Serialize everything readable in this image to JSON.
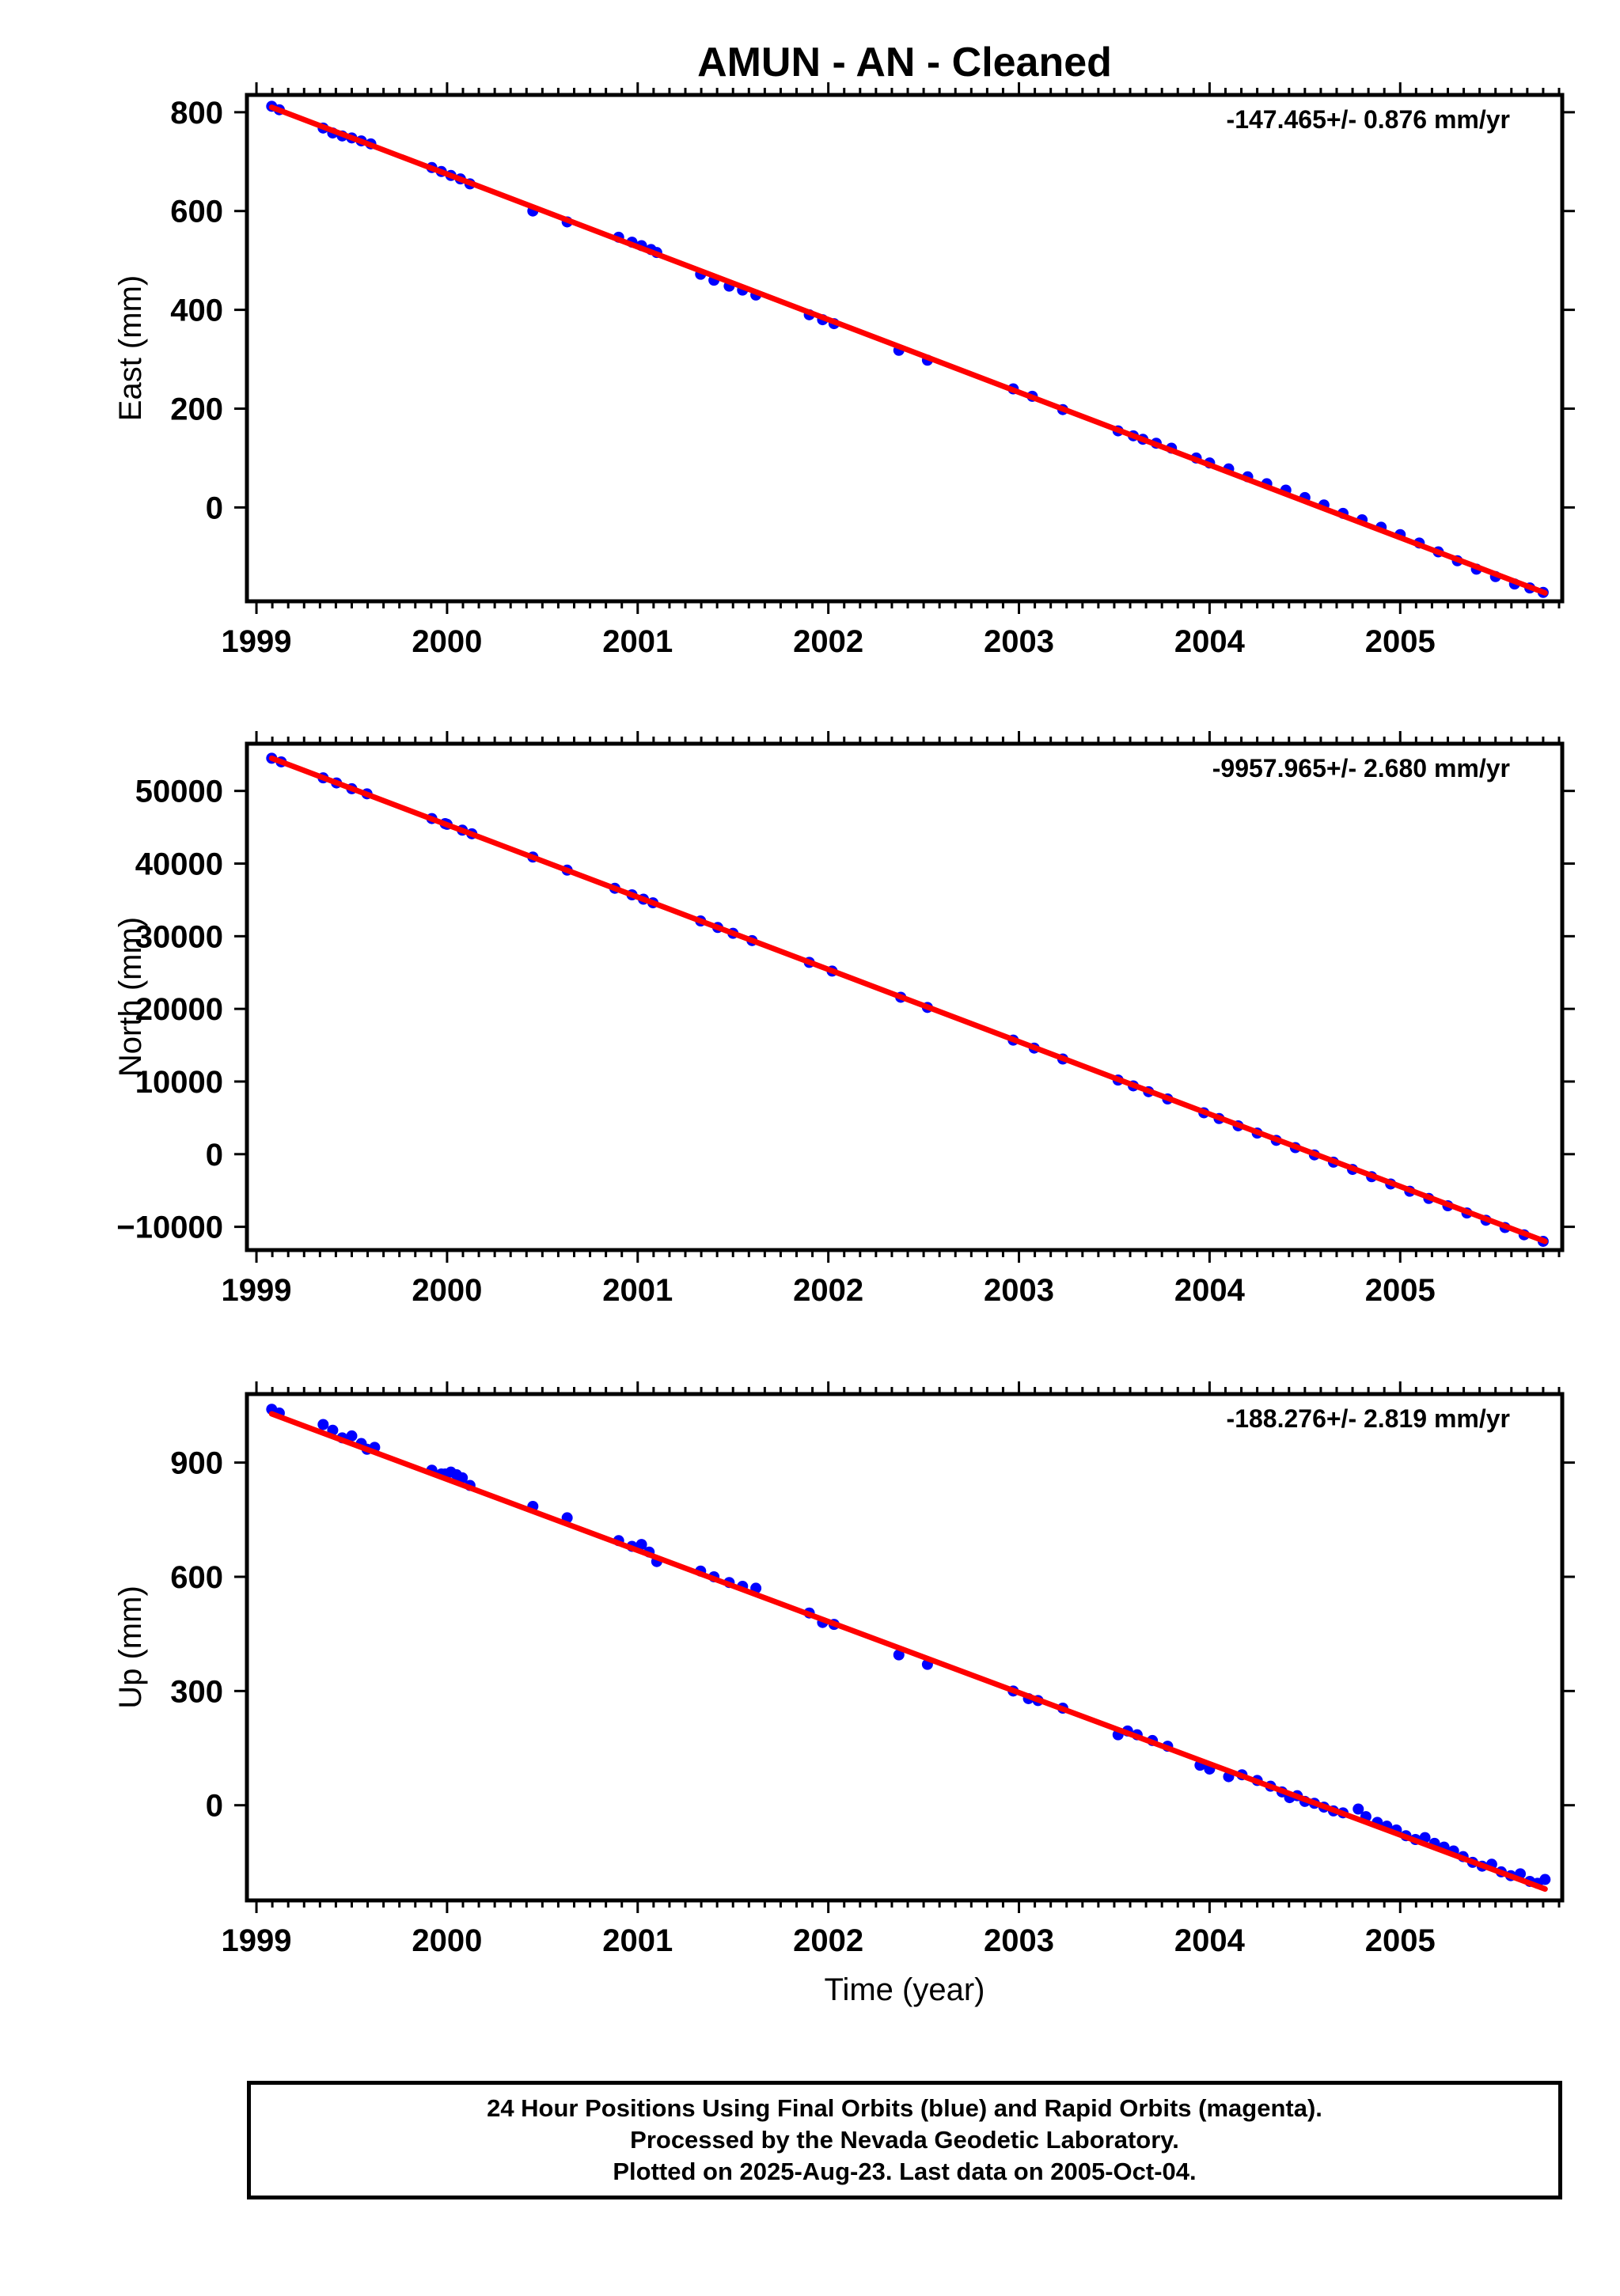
{
  "title": "AMUN  - AN - Cleaned",
  "footer": {
    "line1": "24 Hour Positions Using Final Orbits (blue) and Rapid Orbits (magenta).",
    "line2": "Processed by the Nevada Geodetic Laboratory.",
    "line3": "Plotted on 2025-Aug-23. Last data on 2005-Oct-04."
  },
  "colors": {
    "data": "#0000ff",
    "fit": "#ff0000",
    "axes": "#000000"
  },
  "chart_data": [
    {
      "type": "scatter",
      "component": "east",
      "ylabel": "East (mm)",
      "xlabel": "",
      "rate_label": "-147.465+/- 0.876 mm/yr",
      "xlim": [
        1998.95,
        2005.85
      ],
      "ylim": [
        -190,
        835
      ],
      "xticks": [
        1999,
        2000,
        2001,
        2002,
        2003,
        2004,
        2005
      ],
      "yticks": [
        0,
        200,
        400,
        600,
        800
      ],
      "grid": false,
      "fit": {
        "x": [
          1999.08,
          2005.76
        ],
        "y": [
          810,
          -173
        ]
      },
      "points": [
        [
          1999.08,
          812
        ],
        [
          1999.12,
          805
        ],
        [
          1999.35,
          768
        ],
        [
          1999.4,
          758
        ],
        [
          1999.45,
          752
        ],
        [
          1999.5,
          748
        ],
        [
          1999.55,
          742
        ],
        [
          1999.6,
          736
        ],
        [
          1999.92,
          688
        ],
        [
          1999.97,
          680
        ],
        [
          2000.02,
          672
        ],
        [
          2000.07,
          665
        ],
        [
          2000.12,
          655
        ],
        [
          2000.45,
          600
        ],
        [
          2000.63,
          578
        ],
        [
          2000.9,
          547
        ],
        [
          2000.97,
          537
        ],
        [
          2001.02,
          530
        ],
        [
          2001.07,
          522
        ],
        [
          2001.1,
          516
        ],
        [
          2001.33,
          472
        ],
        [
          2001.4,
          460
        ],
        [
          2001.48,
          448
        ],
        [
          2001.55,
          440
        ],
        [
          2001.62,
          430
        ],
        [
          2001.9,
          390
        ],
        [
          2001.97,
          380
        ],
        [
          2002.03,
          372
        ],
        [
          2002.37,
          318
        ],
        [
          2002.52,
          298
        ],
        [
          2002.97,
          240
        ],
        [
          2003.07,
          225
        ],
        [
          2003.23,
          198
        ],
        [
          2003.52,
          155
        ],
        [
          2003.6,
          145
        ],
        [
          2003.65,
          138
        ],
        [
          2003.72,
          130
        ],
        [
          2003.8,
          120
        ],
        [
          2003.93,
          100
        ],
        [
          2004.0,
          90
        ],
        [
          2004.1,
          78
        ],
        [
          2004.2,
          62
        ],
        [
          2004.3,
          48
        ],
        [
          2004.4,
          35
        ],
        [
          2004.5,
          20
        ],
        [
          2004.6,
          5
        ],
        [
          2004.7,
          -12
        ],
        [
          2004.8,
          -25
        ],
        [
          2004.9,
          -40
        ],
        [
          2005.0,
          -55
        ],
        [
          2005.1,
          -72
        ],
        [
          2005.2,
          -90
        ],
        [
          2005.3,
          -108
        ],
        [
          2005.4,
          -125
        ],
        [
          2005.5,
          -140
        ],
        [
          2005.6,
          -155
        ],
        [
          2005.68,
          -163
        ],
        [
          2005.75,
          -172
        ]
      ]
    },
    {
      "type": "scatter",
      "component": "north",
      "ylabel": "North (mm)",
      "xlabel": "",
      "rate_label": "-9957.965+/- 2.680 mm/yr",
      "xlim": [
        1998.95,
        2005.85
      ],
      "ylim": [
        -13200,
        56500
      ],
      "xticks": [
        1999,
        2000,
        2001,
        2002,
        2003,
        2004,
        2005
      ],
      "yticks": [
        -10000,
        0,
        10000,
        20000,
        30000,
        40000,
        50000
      ],
      "ytick_labels": [
        "−10000",
        "0",
        "10000",
        "20000",
        "30000",
        "40000",
        "50000"
      ],
      "grid": false,
      "fit": {
        "x": [
          1999.08,
          2005.76
        ],
        "y": [
          54500,
          -12000
        ]
      },
      "points": [
        [
          1999.08,
          54500
        ],
        [
          1999.13,
          54000
        ],
        [
          1999.35,
          51800
        ],
        [
          1999.42,
          51100
        ],
        [
          1999.5,
          50300
        ],
        [
          1999.58,
          49600
        ],
        [
          1999.92,
          46200
        ],
        [
          2000.0,
          45400
        ],
        [
          2000.08,
          44600
        ],
        [
          2000.13,
          44100
        ],
        [
          2000.45,
          40900
        ],
        [
          2000.63,
          39100
        ],
        [
          2000.88,
          36600
        ],
        [
          2000.97,
          35700
        ],
        [
          2001.03,
          35100
        ],
        [
          2001.08,
          34600
        ],
        [
          2001.33,
          32100
        ],
        [
          2001.42,
          31200
        ],
        [
          2001.5,
          30400
        ],
        [
          2001.6,
          29400
        ],
        [
          2001.9,
          26400
        ],
        [
          1999.99,
          45500
        ],
        [
          2002.02,
          25200
        ],
        [
          2002.38,
          21600
        ],
        [
          2002.52,
          20200
        ],
        [
          2002.97,
          15700
        ],
        [
          2003.08,
          14600
        ],
        [
          2003.23,
          13100
        ],
        [
          2003.52,
          10200
        ],
        [
          2003.6,
          9400
        ],
        [
          2003.68,
          8600
        ],
        [
          2003.78,
          7600
        ],
        [
          2003.97,
          5700
        ],
        [
          2004.05,
          4900
        ],
        [
          2004.15,
          3900
        ],
        [
          2004.25,
          2900
        ],
        [
          2004.35,
          1900
        ],
        [
          2004.45,
          900
        ],
        [
          2004.55,
          -100
        ],
        [
          2004.65,
          -1100
        ],
        [
          2004.75,
          -2100
        ],
        [
          2004.85,
          -3100
        ],
        [
          2004.95,
          -4100
        ],
        [
          2005.05,
          -5100
        ],
        [
          2005.15,
          -6100
        ],
        [
          2005.25,
          -7100
        ],
        [
          2005.35,
          -8100
        ],
        [
          2005.45,
          -9100
        ],
        [
          2005.55,
          -10100
        ],
        [
          2005.65,
          -11100
        ],
        [
          2005.75,
          -12000
        ]
      ]
    },
    {
      "type": "scatter",
      "component": "up",
      "ylabel": "Up (mm)",
      "xlabel": "Time (year)",
      "rate_label": "-188.276+/- 2.819 mm/yr",
      "xlim": [
        1998.95,
        2005.85
      ],
      "ylim": [
        -250,
        1080
      ],
      "xticks": [
        1999,
        2000,
        2001,
        2002,
        2003,
        2004,
        2005
      ],
      "yticks": [
        0,
        300,
        600,
        900
      ],
      "grid": false,
      "fit": {
        "x": [
          1999.08,
          2005.76
        ],
        "y": [
          1028,
          -220
        ]
      },
      "points": [
        [
          1999.08,
          1040
        ],
        [
          1999.12,
          1030
        ],
        [
          1999.35,
          1000
        ],
        [
          1999.4,
          985
        ],
        [
          1999.45,
          965
        ],
        [
          1999.5,
          970
        ],
        [
          1999.55,
          950
        ],
        [
          1999.58,
          935
        ],
        [
          1999.62,
          940
        ],
        [
          1999.92,
          880
        ],
        [
          1999.97,
          870
        ],
        [
          2000.02,
          875
        ],
        [
          2000.05,
          868
        ],
        [
          2000.08,
          860
        ],
        [
          2000.12,
          840
        ],
        [
          2000.45,
          785
        ],
        [
          2000.63,
          755
        ],
        [
          2000.9,
          695
        ],
        [
          2000.97,
          680
        ],
        [
          2001.02,
          685
        ],
        [
          2001.06,
          665
        ],
        [
          2001.1,
          640
        ],
        [
          2001.33,
          615
        ],
        [
          2001.4,
          600
        ],
        [
          2001.48,
          585
        ],
        [
          2001.55,
          575
        ],
        [
          2001.62,
          570
        ],
        [
          2001.9,
          505
        ],
        [
          1999.99,
          870
        ],
        [
          2001.97,
          480
        ],
        [
          2002.03,
          475
        ],
        [
          2002.37,
          395
        ],
        [
          2002.52,
          370
        ],
        [
          2002.97,
          300
        ],
        [
          2003.05,
          280
        ],
        [
          2003.1,
          275
        ],
        [
          2003.23,
          255
        ],
        [
          2003.52,
          185
        ],
        [
          2003.57,
          195
        ],
        [
          2003.62,
          185
        ],
        [
          2003.7,
          170
        ],
        [
          2003.78,
          155
        ],
        [
          2003.95,
          105
        ],
        [
          2004.0,
          95
        ],
        [
          2004.1,
          75
        ],
        [
          2004.17,
          80
        ],
        [
          2004.25,
          65
        ],
        [
          2004.32,
          50
        ],
        [
          2004.38,
          35
        ],
        [
          2004.42,
          20
        ],
        [
          2004.46,
          25
        ],
        [
          2004.5,
          10
        ],
        [
          2004.55,
          5
        ],
        [
          2004.6,
          -5
        ],
        [
          2004.65,
          -15
        ],
        [
          2004.7,
          -20
        ],
        [
          2004.78,
          -10
        ],
        [
          2004.82,
          -30
        ],
        [
          2004.88,
          -45
        ],
        [
          2004.93,
          -55
        ],
        [
          2004.98,
          -65
        ],
        [
          2005.03,
          -80
        ],
        [
          2005.08,
          -90
        ],
        [
          2005.13,
          -85
        ],
        [
          2005.18,
          -100
        ],
        [
          2005.23,
          -110
        ],
        [
          2005.28,
          -120
        ],
        [
          2005.33,
          -135
        ],
        [
          2005.38,
          -150
        ],
        [
          2005.43,
          -160
        ],
        [
          2005.48,
          -155
        ],
        [
          2005.53,
          -175
        ],
        [
          2005.58,
          -185
        ],
        [
          2005.63,
          -180
        ],
        [
          2005.68,
          -200
        ],
        [
          2005.72,
          -205
        ],
        [
          2005.76,
          -195
        ]
      ]
    }
  ]
}
